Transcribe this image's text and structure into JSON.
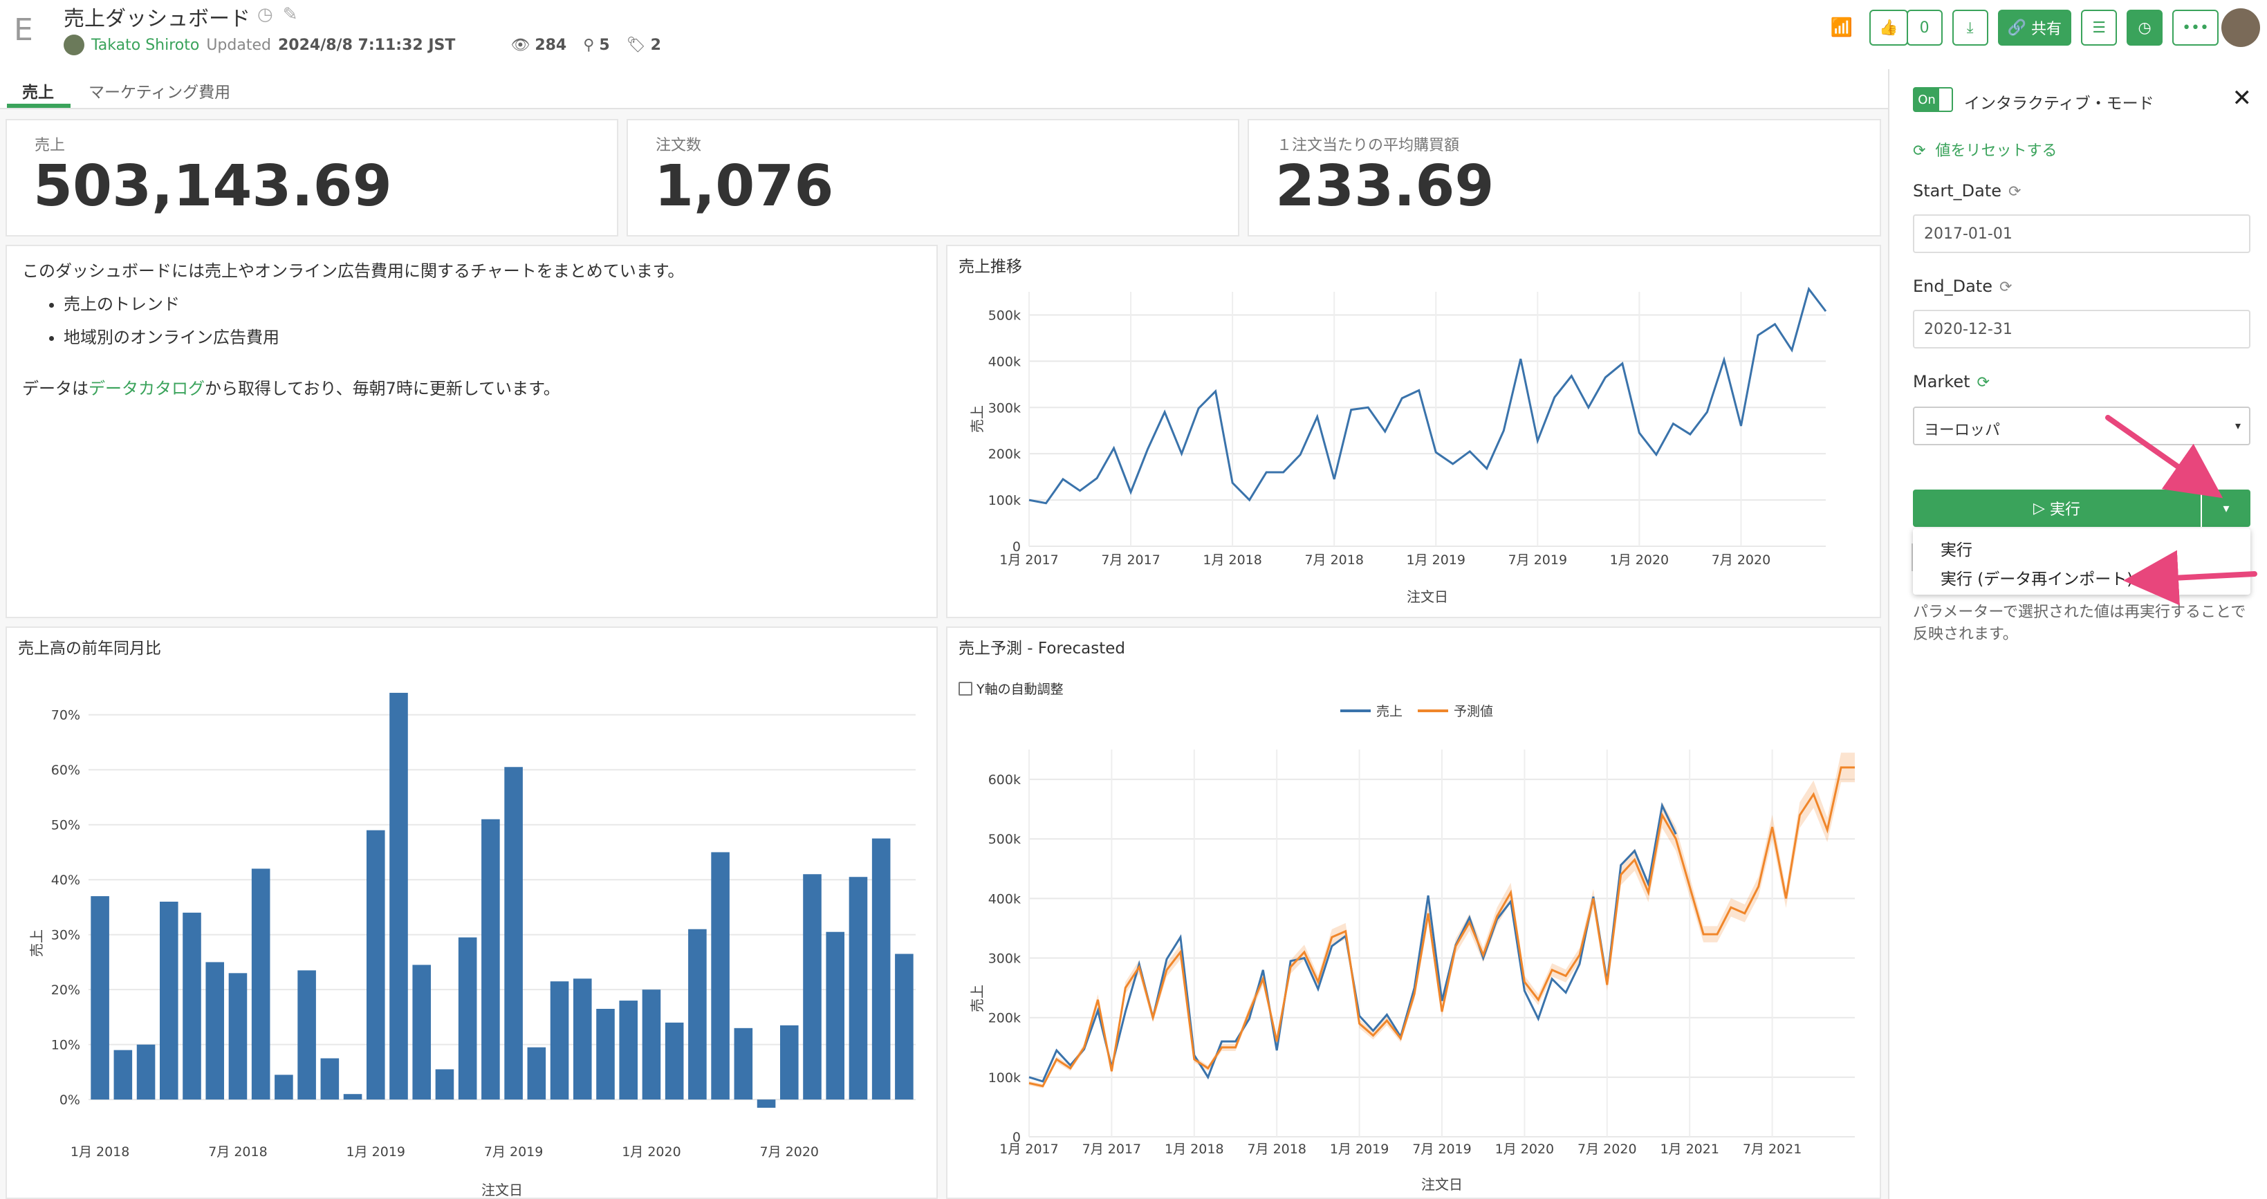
{
  "header": {
    "logo": "E",
    "title": "売上ダッシュボード",
    "author": "Takato Shiroto",
    "updated_prefix": "Updated",
    "updated_at": "2024/8/8 7:11:32 JST",
    "views": "284",
    "users": "5",
    "tags": "2",
    "like_count": "0",
    "share_label": "共有"
  },
  "tabs": [
    {
      "label": "売上",
      "active": true
    },
    {
      "label": "マーケティング費用",
      "active": false
    }
  ],
  "kpis": [
    {
      "label": "売上",
      "value": "503,143.69"
    },
    {
      "label": "注文数",
      "value": "1,076"
    },
    {
      "label": "１注文当たりの平均購買額",
      "value": "233.69"
    }
  ],
  "intro": {
    "line1": "このダッシュボードには売上やオンライン広告費用に関するチャートをまとめています。",
    "bullets": [
      "売上のトレンド",
      "地域別のオンライン広告費用"
    ],
    "line2_prefix": "データは",
    "line2_link": "データカタログ",
    "line2_suffix": "から取得しており、毎朝7時に更新しています。"
  },
  "sidebar": {
    "toggle": "On",
    "mode_label": "インタラクティブ・モード",
    "reset_label": "値をリセットする",
    "params": [
      {
        "label": "Start_Date",
        "value": "2017-01-01"
      },
      {
        "label": "End_Date",
        "value": "2020-12-31"
      },
      {
        "label": "Market",
        "value": "ヨーロッパ"
      }
    ],
    "run_label": "実行",
    "menu": [
      "実行",
      "実行 (データ再インポート)"
    ],
    "hint": "パラメーターで選択された値は再実行することで反映されます。"
  },
  "colors": {
    "accent": "#3aa35b",
    "series_blue": "#3a73ab",
    "series_orange": "#f0862a",
    "arrow": "#e8467c"
  },
  "chart_data": [
    {
      "type": "line",
      "title": "売上推移",
      "xlabel": "注文日",
      "ylabel": "売上",
      "ylim": [
        0,
        550000
      ],
      "yticks": [
        0,
        100000,
        200000,
        300000,
        400000,
        500000
      ],
      "ytick_labels": [
        "0",
        "100k",
        "200k",
        "300k",
        "400k",
        "500k"
      ],
      "xtick_labels": [
        "1月 2017",
        "7月 2017",
        "1月 2018",
        "7月 2018",
        "1月 2019",
        "7月 2019",
        "1月 2020",
        "7月 2020"
      ],
      "x": [
        "2017-01",
        "2017-02",
        "2017-03",
        "2017-04",
        "2017-05",
        "2017-06",
        "2017-07",
        "2017-08",
        "2017-09",
        "2017-10",
        "2017-11",
        "2017-12",
        "2018-01",
        "2018-02",
        "2018-03",
        "2018-04",
        "2018-05",
        "2018-06",
        "2018-07",
        "2018-08",
        "2018-09",
        "2018-10",
        "2018-11",
        "2018-12",
        "2019-01",
        "2019-02",
        "2019-03",
        "2019-04",
        "2019-05",
        "2019-06",
        "2019-07",
        "2019-08",
        "2019-09",
        "2019-10",
        "2019-11",
        "2019-12",
        "2020-01",
        "2020-02",
        "2020-03",
        "2020-04",
        "2020-05",
        "2020-06",
        "2020-07",
        "2020-08",
        "2020-09",
        "2020-10",
        "2020-11",
        "2020-12"
      ],
      "series": [
        {
          "name": "売上",
          "values": [
            100000,
            93000,
            145000,
            120000,
            147000,
            212000,
            117000,
            210000,
            290000,
            200000,
            298000,
            335000,
            137000,
            100000,
            160000,
            160000,
            198000,
            280000,
            145000,
            295000,
            300000,
            248000,
            320000,
            337000,
            203000,
            178000,
            205000,
            168000,
            250000,
            405000,
            228000,
            322000,
            368000,
            300000,
            365000,
            395000,
            245000,
            198000,
            265000,
            242000,
            290000,
            403000,
            260000,
            456000,
            480000,
            424000,
            556000,
            508000
          ]
        }
      ]
    },
    {
      "type": "bar",
      "title": "売上高の前年同月比",
      "xlabel": "注文日",
      "ylabel": "売上",
      "ylim": [
        -0.03,
        0.75
      ],
      "yticks": [
        0,
        0.1,
        0.2,
        0.3,
        0.4,
        0.5,
        0.6,
        0.7
      ],
      "ytick_labels": [
        "0%",
        "10%",
        "20%",
        "30%",
        "40%",
        "50%",
        "60%",
        "70%"
      ],
      "xtick_labels": [
        "1月 2018",
        "7月 2018",
        "1月 2019",
        "7月 2019",
        "1月 2020",
        "7月 2020"
      ],
      "x": [
        "2018-01",
        "2018-02",
        "2018-03",
        "2018-04",
        "2018-05",
        "2018-06",
        "2018-07",
        "2018-08",
        "2018-09",
        "2018-10",
        "2018-11",
        "2018-12",
        "2019-01",
        "2019-02",
        "2019-03",
        "2019-04",
        "2019-05",
        "2019-06",
        "2019-07",
        "2019-08",
        "2019-09",
        "2019-10",
        "2019-11",
        "2019-12",
        "2020-01",
        "2020-02",
        "2020-03",
        "2020-04",
        "2020-05",
        "2020-06",
        "2020-07",
        "2020-08",
        "2020-09",
        "2020-10",
        "2020-11",
        "2020-12"
      ],
      "series": [
        {
          "name": "売上",
          "values": [
            0.37,
            0.09,
            0.1,
            0.36,
            0.34,
            0.25,
            0.23,
            0.42,
            0.045,
            0.235,
            0.075,
            0.01,
            0.49,
            0.74,
            0.245,
            0.055,
            0.295,
            0.51,
            0.605,
            0.095,
            0.215,
            0.22,
            0.165,
            0.18,
            0.2,
            0.14,
            0.31,
            0.45,
            0.13,
            -0.015,
            0.135,
            0.41,
            0.305,
            0.405,
            0.475,
            0.265
          ]
        }
      ]
    },
    {
      "type": "line",
      "title": "売上予測 - Forecasted",
      "checkbox_label": "Y軸の自動調整",
      "xlabel": "注文日",
      "ylabel": "売上",
      "ylim": [
        0,
        650000
      ],
      "yticks": [
        0,
        100000,
        200000,
        300000,
        400000,
        500000,
        600000
      ],
      "ytick_labels": [
        "0",
        "100k",
        "200k",
        "300k",
        "400k",
        "500k",
        "600k"
      ],
      "xtick_labels": [
        "1月 2017",
        "7月 2017",
        "1月 2018",
        "7月 2018",
        "1月 2019",
        "7月 2019",
        "1月 2020",
        "7月 2020",
        "1月 2021",
        "7月 2021"
      ],
      "legend_position": "top",
      "series": [
        {
          "name": "売上",
          "values": [
            100000,
            93000,
            145000,
            120000,
            147000,
            212000,
            117000,
            210000,
            290000,
            200000,
            298000,
            335000,
            137000,
            100000,
            160000,
            160000,
            198000,
            280000,
            145000,
            295000,
            300000,
            248000,
            320000,
            337000,
            203000,
            178000,
            205000,
            168000,
            250000,
            405000,
            228000,
            322000,
            368000,
            300000,
            365000,
            395000,
            245000,
            198000,
            265000,
            242000,
            290000,
            403000,
            260000,
            456000,
            480000,
            424000,
            556000,
            508000
          ]
        },
        {
          "name": "予測値",
          "values": [
            90000,
            85000,
            130000,
            115000,
            150000,
            230000,
            110000,
            250000,
            285000,
            200000,
            280000,
            310000,
            130000,
            115000,
            150000,
            150000,
            210000,
            265000,
            160000,
            285000,
            310000,
            260000,
            335000,
            345000,
            190000,
            170000,
            195000,
            165000,
            240000,
            375000,
            210000,
            320000,
            360000,
            305000,
            370000,
            410000,
            260000,
            230000,
            280000,
            270000,
            305000,
            400000,
            255000,
            440000,
            465000,
            410000,
            540000,
            500000,
            420000,
            340000,
            340000,
            385000,
            375000,
            420000,
            520000,
            400000,
            540000,
            575000,
            515000,
            620000,
            620000
          ]
        }
      ]
    }
  ]
}
